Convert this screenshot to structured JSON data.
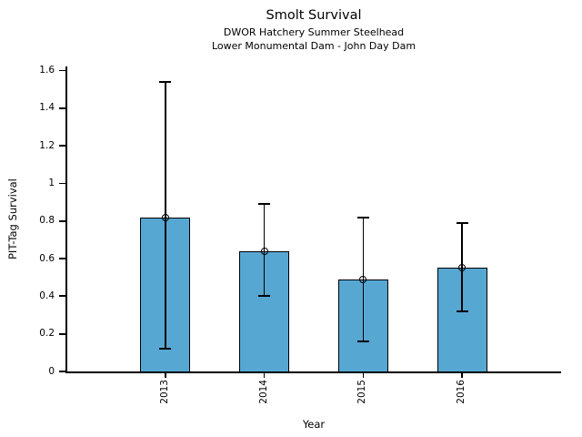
{
  "chart_data": {
    "type": "bar",
    "title": "Smolt Survival",
    "subtitles": [
      "DWOR Hatchery Summer Steelhead",
      "Lower Monumental Dam - John Day Dam"
    ],
    "xlabel": "Year",
    "ylabel": "PIT-Tag Survival",
    "categories": [
      "2013",
      "2014",
      "2015",
      "2016"
    ],
    "values": [
      0.82,
      0.64,
      0.49,
      0.55
    ],
    "error_low": [
      0.12,
      0.4,
      0.16,
      0.32
    ],
    "error_high": [
      1.54,
      0.89,
      0.82,
      0.79
    ],
    "ylim": [
      0,
      1.6
    ],
    "yticks": [
      0,
      0.2,
      0.4,
      0.6,
      0.8,
      1.0,
      1.2,
      1.4,
      1.6
    ],
    "ytick_labels": [
      "0",
      "0.2",
      "0.4",
      "0.6",
      "0.8",
      "1",
      "1.2",
      "1.4",
      "1.6"
    ],
    "bar_color": "#57a7d3",
    "edge_color": "#000000",
    "marker": "open-circle",
    "grid": false,
    "legend": "none",
    "xtick_rotation": 90
  }
}
